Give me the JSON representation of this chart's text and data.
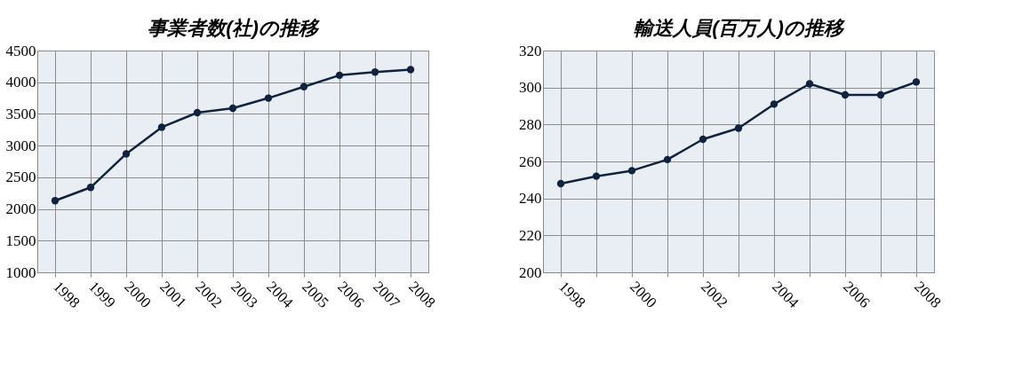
{
  "chart_data": [
    {
      "type": "line",
      "title": "事業者数(社)の推移",
      "categories": [
        "1998",
        "1999",
        "2000",
        "2001",
        "2002",
        "2003",
        "2004",
        "2005",
        "2006",
        "2007",
        "2008"
      ],
      "series": [
        {
          "color": "#0f2340",
          "values": [
            2130,
            2340,
            2870,
            3290,
            3520,
            3590,
            3750,
            3930,
            4110,
            4160,
            4200
          ]
        }
      ],
      "ylim": [
        1000,
        4500
      ],
      "yticks": [
        1000,
        1500,
        2000,
        2500,
        3000,
        3500,
        4000,
        4500
      ],
      "grid": true,
      "marker": "circle",
      "line_style": "solid"
    },
    {
      "type": "line",
      "title": "輸送人員(百万人)の推移",
      "categories": [
        "1998",
        null,
        "2000",
        null,
        "2002",
        null,
        "2004",
        null,
        "2006",
        null,
        "2008"
      ],
      "series": [
        {
          "color": "#0f2340",
          "values": [
            248,
            252,
            255,
            261,
            272,
            278,
            291,
            302,
            296,
            296,
            303
          ]
        }
      ],
      "ylim": [
        200,
        320
      ],
      "yticks": [
        200,
        220,
        240,
        260,
        280,
        300,
        320
      ],
      "grid": true,
      "marker": "circle",
      "line_style": "solid"
    }
  ]
}
